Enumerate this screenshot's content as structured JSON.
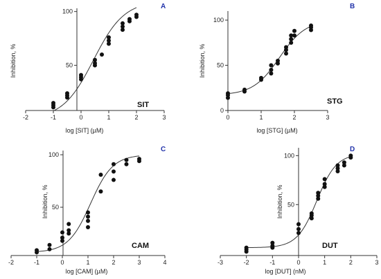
{
  "chart_data": [
    {
      "type": "scatter",
      "panel": "A",
      "label": "SIT",
      "xlabel": "log [SIT]  (µM)",
      "ylabel": "Inhibition, %",
      "xlim": [
        -2,
        3
      ],
      "ylim": [
        8,
        103
      ],
      "xticks": [
        "-2",
        "-1",
        "0",
        "1",
        "2",
        "3"
      ],
      "yticks": [
        "50",
        "100"
      ],
      "ytick_values": [
        50,
        100
      ],
      "fit": {
        "bottom": 0,
        "top": 110,
        "logEC50": 0.45,
        "hill": 0.78
      },
      "points": [
        [
          -1,
          11
        ],
        [
          -1,
          13
        ],
        [
          -1,
          15
        ],
        [
          -0.5,
          20
        ],
        [
          -0.5,
          22
        ],
        [
          -0.5,
          24
        ],
        [
          0,
          37
        ],
        [
          0,
          39
        ],
        [
          0,
          41
        ],
        [
          0.5,
          50
        ],
        [
          0.5,
          52
        ],
        [
          0.5,
          55
        ],
        [
          0.75,
          60
        ],
        [
          1,
          70
        ],
        [
          1,
          73
        ],
        [
          1,
          76
        ],
        [
          1.5,
          83
        ],
        [
          1.5,
          86
        ],
        [
          1.5,
          89
        ],
        [
          1.75,
          91
        ],
        [
          1.75,
          93
        ],
        [
          2,
          95
        ],
        [
          2,
          97
        ]
      ]
    },
    {
      "type": "scatter",
      "panel": "B",
      "label": "STG",
      "xlabel": "log [STG] (µM)",
      "ylabel": "Inhibition, %",
      "xlim": [
        0,
        3
      ],
      "ylim": [
        0,
        110
      ],
      "xticks": [
        "0",
        "1",
        "2",
        "3"
      ],
      "yticks": [
        "0",
        "50",
        "100"
      ],
      "ytick_values": [
        0,
        50,
        100
      ],
      "fit": {
        "bottom": 17,
        "top": 100,
        "logEC50": 1.55,
        "hill": 1.1
      },
      "points": [
        [
          0,
          14
        ],
        [
          0,
          17
        ],
        [
          0,
          19
        ],
        [
          0.5,
          21
        ],
        [
          0.5,
          23
        ],
        [
          1,
          34
        ],
        [
          1,
          36
        ],
        [
          1.3,
          41
        ],
        [
          1.3,
          45
        ],
        [
          1.3,
          50
        ],
        [
          1.5,
          52
        ],
        [
          1.5,
          55
        ],
        [
          1.75,
          63
        ],
        [
          1.75,
          67
        ],
        [
          1.75,
          70
        ],
        [
          1.9,
          75
        ],
        [
          1.9,
          79
        ],
        [
          1.9,
          83
        ],
        [
          2,
          83
        ],
        [
          2,
          88
        ],
        [
          2.5,
          89
        ],
        [
          2.5,
          92
        ],
        [
          2.5,
          94
        ]
      ]
    },
    {
      "type": "scatter",
      "panel": "C",
      "label": "CAM",
      "xlabel": "log [CAM] (µM)",
      "ylabel": "Inhibition, %",
      "xlim": [
        -2,
        4
      ],
      "ylim": [
        4,
        104
      ],
      "xticks": [
        "-2",
        "-1",
        "0",
        "1",
        "2",
        "3",
        "4"
      ],
      "yticks": [
        "50",
        "100"
      ],
      "ytick_values": [
        50,
        100
      ],
      "fit": {
        "bottom": 7,
        "top": 100,
        "logEC50": 1.1,
        "hill": 1.0
      },
      "points": [
        [
          -1,
          7
        ],
        [
          -1,
          9
        ],
        [
          -0.5,
          10
        ],
        [
          -0.5,
          14
        ],
        [
          0,
          18
        ],
        [
          0,
          21
        ],
        [
          0,
          26
        ],
        [
          0.25,
          25
        ],
        [
          0.25,
          28
        ],
        [
          0.25,
          34
        ],
        [
          1,
          31
        ],
        [
          1,
          37
        ],
        [
          1,
          41
        ],
        [
          1,
          45
        ],
        [
          1.5,
          65
        ],
        [
          1.5,
          81
        ],
        [
          2,
          76
        ],
        [
          2,
          84
        ],
        [
          2,
          91
        ],
        [
          2.5,
          91
        ],
        [
          2.5,
          95
        ],
        [
          3,
          94
        ],
        [
          3,
          96
        ]
      ]
    },
    {
      "type": "scatter",
      "panel": "D",
      "label": "DUT",
      "xlabel": "log [DUT] (nM)",
      "ylabel": "Inhibition, %",
      "xlim": [
        -3,
        3
      ],
      "ylim": [
        -2,
        108
      ],
      "xticks": [
        "-3",
        "-2",
        "-1",
        "0",
        "1",
        "2",
        "3"
      ],
      "yticks": [
        "50",
        "100"
      ],
      "ytick_values": [
        50,
        100
      ],
      "fit": {
        "bottom": 6,
        "top": 102,
        "logEC50": 0.7,
        "hill": 1.15
      },
      "points": [
        [
          -2,
          2
        ],
        [
          -2,
          4
        ],
        [
          -2,
          6
        ],
        [
          -1,
          6
        ],
        [
          -1,
          8
        ],
        [
          -1,
          11
        ],
        [
          0,
          21
        ],
        [
          0,
          25
        ],
        [
          0,
          30
        ],
        [
          0.5,
          36
        ],
        [
          0.5,
          39
        ],
        [
          0.5,
          41
        ],
        [
          0.75,
          56
        ],
        [
          0.75,
          59
        ],
        [
          0.75,
          62
        ],
        [
          1,
          68
        ],
        [
          1,
          71
        ],
        [
          1,
          76
        ],
        [
          1.5,
          84
        ],
        [
          1.5,
          87
        ],
        [
          1.5,
          90
        ],
        [
          1.75,
          90
        ],
        [
          1.75,
          93
        ],
        [
          2,
          98
        ],
        [
          2,
          100
        ]
      ]
    }
  ]
}
